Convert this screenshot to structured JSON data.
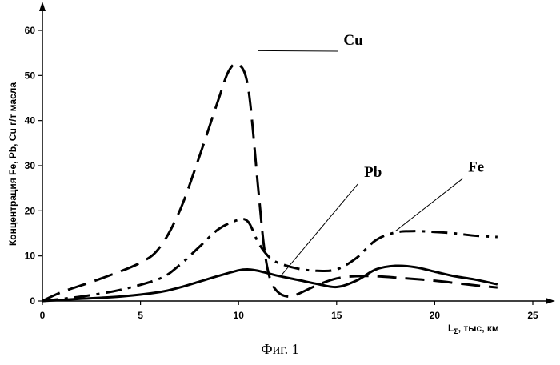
{
  "chart_data": {
    "type": "line",
    "xlabel": "L",
    "xlabel_sub": "Σ",
    "xlabel_rest": ", тыс, км",
    "ylabel": "Концентрация Fe, Pb, Cu г/т масла",
    "xlim": [
      0,
      25
    ],
    "ylim": [
      0,
      65
    ],
    "xticks": [
      0,
      5,
      10,
      15,
      20,
      25
    ],
    "yticks": [
      0,
      10,
      20,
      30,
      40,
      50,
      60
    ],
    "grid": false,
    "legend": "none",
    "series": [
      {
        "name": "Cu",
        "style": "long-dash",
        "x": [
          0,
          1,
          3,
          5,
          6,
          7,
          8,
          9,
          9.5,
          10,
          10.5,
          11,
          11.3,
          11.6,
          12,
          12.5,
          13,
          14,
          15,
          16,
          17,
          18,
          20,
          22,
          23.2
        ],
        "y": [
          0,
          2,
          5,
          8.5,
          12,
          20,
          32,
          45,
          51,
          52.5,
          47,
          25,
          12,
          5,
          2,
          1,
          1.5,
          3.5,
          5,
          5.5,
          5.5,
          5.2,
          4.5,
          3.5,
          3
        ]
      },
      {
        "name": "Fe",
        "style": "dash-dot",
        "x": [
          0,
          2,
          4,
          6,
          7,
          8,
          9,
          10,
          10.5,
          11,
          11.5,
          12,
          13,
          14,
          15,
          16,
          17,
          18,
          19,
          20,
          21,
          22,
          23.2
        ],
        "y": [
          0,
          1,
          2.5,
          5,
          8,
          12,
          16,
          18,
          17.5,
          13,
          10,
          8.5,
          7.2,
          6.7,
          7,
          9.5,
          13.5,
          15.2,
          15.5,
          15.3,
          15,
          14.5,
          14.2
        ]
      },
      {
        "name": "Pb",
        "style": "solid",
        "x": [
          0,
          2,
          4,
          6,
          7,
          8,
          9,
          10,
          10.5,
          11,
          12,
          13,
          14,
          15,
          16,
          17,
          18,
          19,
          20,
          21,
          22,
          23.2
        ],
        "y": [
          0,
          0.5,
          1,
          2,
          3,
          4.3,
          5.6,
          6.8,
          7,
          6.7,
          5.6,
          4.7,
          3.8,
          3.1,
          4.5,
          7,
          7.8,
          7.5,
          6.5,
          5.5,
          4.8,
          3.7
        ]
      }
    ],
    "annotations": [
      {
        "text": "Cu",
        "series": "Cu"
      },
      {
        "text": "Pb",
        "series": "Pb"
      },
      {
        "text": "Fe",
        "series": "Fe"
      }
    ]
  },
  "caption": "Фиг. 1"
}
